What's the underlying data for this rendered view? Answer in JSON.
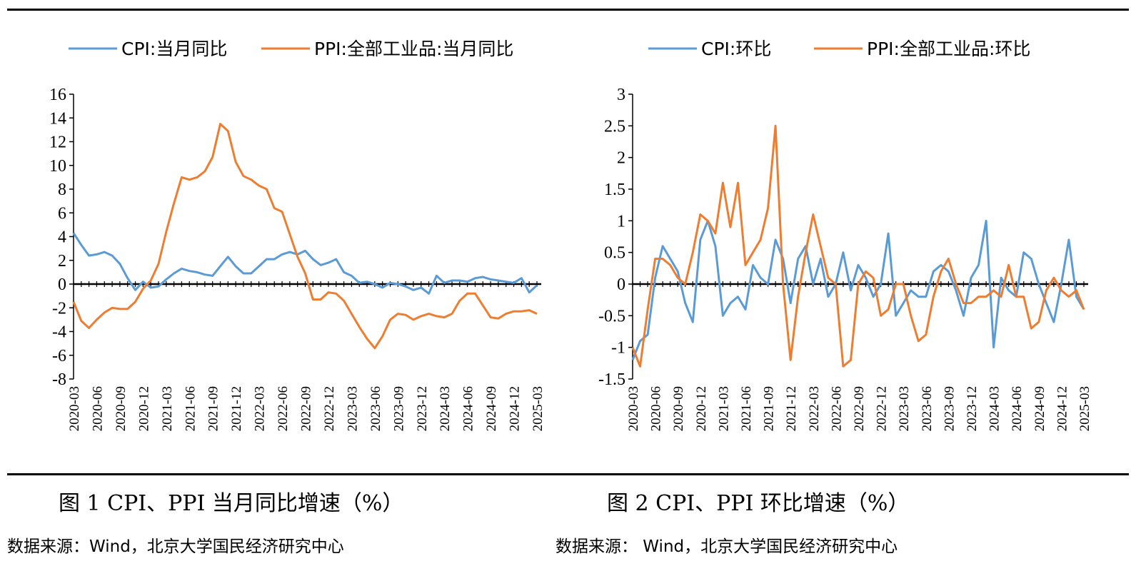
{
  "colors": {
    "cpi": "#5B9BD5",
    "ppi": "#ED7D31",
    "axis": "#000000"
  },
  "figure1": {
    "caption": "图 1 CPI、PPI 当月同比增速（%）",
    "source": "数据来源：Wind，北京大学国民经济研究中心"
  },
  "figure2": {
    "caption": "图 2 CPI、PPI 环比增速（%）",
    "source": "数据来源：  Wind，北京大学国民经济研究中心"
  },
  "chart_data": [
    {
      "type": "line",
      "title": "",
      "xlabel": "",
      "ylabel": "",
      "ylim": [
        -8,
        16
      ],
      "yticks": [
        "16",
        "14",
        "12",
        "10",
        "8",
        "6",
        "4",
        "2",
        "0",
        "-2",
        "-4",
        "-6",
        "-8"
      ],
      "ytick_values": [
        16,
        14,
        12,
        10,
        8,
        6,
        4,
        2,
        0,
        -2,
        -4,
        -6,
        -8
      ],
      "grid": false,
      "legend": "top",
      "x_tick_labels": [
        "2020-03",
        "2020-06",
        "2020-09",
        "2020-12",
        "2021-03",
        "2021-06",
        "2021-09",
        "2021-12",
        "2022-03",
        "2022-06",
        "2022-09",
        "2022-12",
        "2023-03",
        "2023-06",
        "2023-09",
        "2023-12",
        "2024-03",
        "2024-06",
        "2024-09",
        "2024-12",
        "2025-03"
      ],
      "x": [
        "2020-03",
        "2020-04",
        "2020-05",
        "2020-06",
        "2020-07",
        "2020-08",
        "2020-09",
        "2020-10",
        "2020-11",
        "2020-12",
        "2021-01",
        "2021-02",
        "2021-03",
        "2021-04",
        "2021-05",
        "2021-06",
        "2021-07",
        "2021-08",
        "2021-09",
        "2021-10",
        "2021-11",
        "2021-12",
        "2022-01",
        "2022-02",
        "2022-03",
        "2022-04",
        "2022-05",
        "2022-06",
        "2022-07",
        "2022-08",
        "2022-09",
        "2022-10",
        "2022-11",
        "2022-12",
        "2023-01",
        "2023-02",
        "2023-03",
        "2023-04",
        "2023-05",
        "2023-06",
        "2023-07",
        "2023-08",
        "2023-09",
        "2023-10",
        "2023-11",
        "2023-12",
        "2024-01",
        "2024-02",
        "2024-03",
        "2024-04",
        "2024-05",
        "2024-06",
        "2024-07",
        "2024-08",
        "2024-09",
        "2024-10",
        "2024-11",
        "2024-12",
        "2025-01",
        "2025-02",
        "2025-03"
      ],
      "series": [
        {
          "name": "CPI:当月同比",
          "color": "#5B9BD5",
          "values": [
            4.3,
            3.3,
            2.4,
            2.5,
            2.7,
            2.4,
            1.7,
            0.5,
            -0.5,
            0.2,
            -0.3,
            -0.2,
            0.4,
            0.9,
            1.3,
            1.1,
            1.0,
            0.8,
            0.7,
            1.5,
            2.3,
            1.5,
            0.9,
            0.9,
            1.5,
            2.1,
            2.1,
            2.5,
            2.7,
            2.5,
            2.8,
            2.1,
            1.6,
            1.8,
            2.1,
            1.0,
            0.7,
            0.1,
            0.2,
            0.0,
            -0.3,
            0.1,
            0.0,
            -0.2,
            -0.5,
            -0.3,
            -0.8,
            0.7,
            0.1,
            0.3,
            0.3,
            0.2,
            0.5,
            0.6,
            0.4,
            0.3,
            0.2,
            0.1,
            0.5,
            -0.7,
            -0.1
          ]
        },
        {
          "name": "PPI:全部工业品:当月同比",
          "color": "#ED7D31",
          "values": [
            -1.5,
            -3.1,
            -3.7,
            -3.0,
            -2.4,
            -2.0,
            -2.1,
            -2.1,
            -1.5,
            -0.4,
            0.3,
            1.7,
            4.4,
            6.8,
            9.0,
            8.8,
            9.0,
            9.5,
            10.7,
            13.5,
            12.9,
            10.3,
            9.1,
            8.8,
            8.3,
            8.0,
            6.4,
            6.1,
            4.2,
            2.3,
            0.9,
            -1.3,
            -1.3,
            -0.7,
            -0.8,
            -1.4,
            -2.5,
            -3.6,
            -4.6,
            -5.4,
            -4.4,
            -3.0,
            -2.5,
            -2.6,
            -3.0,
            -2.7,
            -2.5,
            -2.7,
            -2.8,
            -2.5,
            -1.4,
            -0.8,
            -0.8,
            -1.8,
            -2.8,
            -2.9,
            -2.5,
            -2.3,
            -2.3,
            -2.2,
            -2.5
          ]
        }
      ]
    },
    {
      "type": "line",
      "title": "",
      "xlabel": "",
      "ylabel": "",
      "ylim": [
        -1.5,
        3
      ],
      "yticks": [
        "3",
        "2.5",
        "2",
        "1.5",
        "1",
        "0.5",
        "0",
        "-0.5",
        "-1",
        "-1.5"
      ],
      "ytick_values": [
        3,
        2.5,
        2,
        1.5,
        1,
        0.5,
        0,
        -0.5,
        -1,
        -1.5
      ],
      "grid": false,
      "legend": "top",
      "x_tick_labels": [
        "2020-03",
        "2020-06",
        "2020-09",
        "2020-12",
        "2021-03",
        "2021-06",
        "2021-09",
        "2021-12",
        "2022-03",
        "2022-06",
        "2022-09",
        "2022-12",
        "2023-03",
        "2023-06",
        "2023-09",
        "2023-12",
        "2024-03",
        "2024-06",
        "2024-09",
        "2024-12",
        "2025-03"
      ],
      "x": [
        "2020-03",
        "2020-04",
        "2020-05",
        "2020-06",
        "2020-07",
        "2020-08",
        "2020-09",
        "2020-10",
        "2020-11",
        "2020-12",
        "2021-01",
        "2021-02",
        "2021-03",
        "2021-04",
        "2021-05",
        "2021-06",
        "2021-07",
        "2021-08",
        "2021-09",
        "2021-10",
        "2021-11",
        "2021-12",
        "2022-01",
        "2022-02",
        "2022-03",
        "2022-04",
        "2022-05",
        "2022-06",
        "2022-07",
        "2022-08",
        "2022-09",
        "2022-10",
        "2022-11",
        "2022-12",
        "2023-01",
        "2023-02",
        "2023-03",
        "2023-04",
        "2023-05",
        "2023-06",
        "2023-07",
        "2023-08",
        "2023-09",
        "2023-10",
        "2023-11",
        "2023-12",
        "2024-01",
        "2024-02",
        "2024-03",
        "2024-04",
        "2024-05",
        "2024-06",
        "2024-07",
        "2024-08",
        "2024-09",
        "2024-10",
        "2024-11",
        "2024-12",
        "2025-01",
        "2025-02",
        "2025-03"
      ],
      "series": [
        {
          "name": "CPI:环比",
          "color": "#5B9BD5",
          "values": [
            -1.2,
            -0.9,
            -0.8,
            0.1,
            0.6,
            0.4,
            0.2,
            -0.3,
            -0.6,
            0.7,
            1.0,
            0.6,
            -0.5,
            -0.3,
            -0.2,
            -0.4,
            0.3,
            0.1,
            0.0,
            0.7,
            0.4,
            -0.3,
            0.4,
            0.6,
            0.0,
            0.4,
            -0.2,
            0.0,
            0.5,
            -0.1,
            0.3,
            0.1,
            -0.2,
            0.0,
            0.8,
            -0.5,
            -0.3,
            -0.1,
            -0.2,
            -0.2,
            0.2,
            0.3,
            0.2,
            -0.1,
            -0.5,
            0.1,
            0.3,
            1.0,
            -1.0,
            0.1,
            -0.1,
            -0.2,
            0.5,
            0.4,
            0.0,
            -0.3,
            -0.6,
            0.0,
            0.7,
            -0.2,
            -0.4
          ]
        },
        {
          "name": "PPI:全部工业品:环比",
          "color": "#ED7D31",
          "values": [
            -1.0,
            -1.3,
            -0.4,
            0.4,
            0.4,
            0.3,
            0.1,
            0.0,
            0.5,
            1.1,
            1.0,
            0.8,
            1.6,
            0.9,
            1.6,
            0.3,
            0.5,
            0.7,
            1.2,
            2.5,
            0.0,
            -1.2,
            -0.2,
            0.5,
            1.1,
            0.6,
            0.1,
            0.0,
            -1.3,
            -1.2,
            0.0,
            0.2,
            0.1,
            -0.5,
            -0.4,
            0.0,
            0.0,
            -0.5,
            -0.9,
            -0.8,
            -0.2,
            0.2,
            0.4,
            0.0,
            -0.3,
            -0.3,
            -0.2,
            -0.2,
            -0.1,
            -0.2,
            0.3,
            -0.2,
            -0.2,
            -0.7,
            -0.6,
            -0.1,
            0.1,
            -0.1,
            -0.2,
            -0.1,
            -0.4
          ]
        }
      ]
    }
  ]
}
